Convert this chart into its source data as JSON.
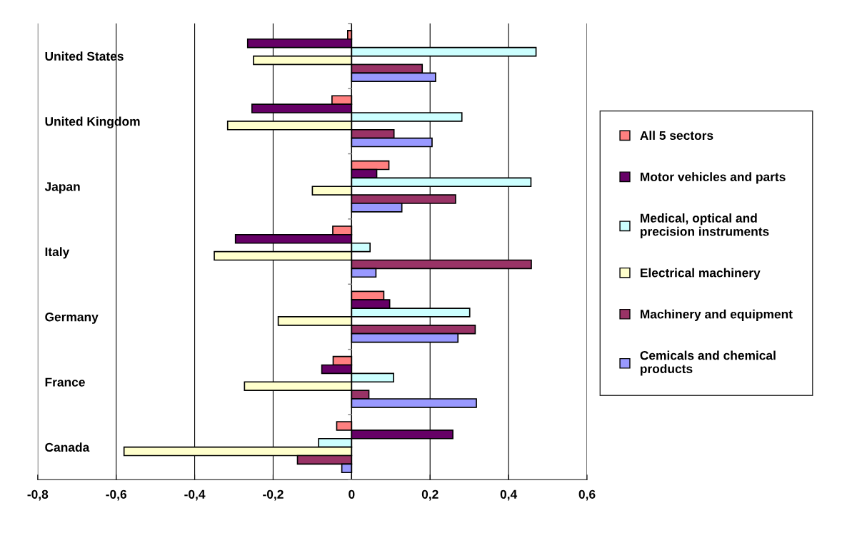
{
  "chart_data": {
    "type": "bar",
    "orientation": "horizontal",
    "categories": [
      "United States",
      "United Kingdom",
      "Japan",
      "Italy",
      "Germany",
      "France",
      "Canada"
    ],
    "series": [
      {
        "name": "All 5 sectors",
        "color": "#ff8080",
        "values": [
          -0.01,
          -0.05,
          0.095,
          -0.048,
          0.082,
          -0.047,
          -0.038
        ]
      },
      {
        "name": "Motor vehicles and parts",
        "color": "#660066",
        "values": [
          -0.265,
          -0.254,
          0.064,
          -0.296,
          0.097,
          -0.076,
          0.258
        ]
      },
      {
        "name": "Medical, optical and\nprecision instruments",
        "color": "#ccffff",
        "values": [
          0.47,
          0.281,
          0.457,
          0.047,
          0.301,
          0.107,
          -0.084
        ]
      },
      {
        "name": "Electrical machinery",
        "color": "#ffffcc",
        "values": [
          -0.25,
          -0.316,
          -0.1,
          -0.35,
          -0.187,
          -0.273,
          -0.58
        ]
      },
      {
        "name": "Machinery and equipment",
        "color": "#993366",
        "values": [
          0.18,
          0.108,
          0.265,
          0.458,
          0.315,
          0.044,
          -0.138
        ]
      },
      {
        "name": "Cemicals and chemical\nproducts",
        "color": "#9999ff",
        "values": [
          0.214,
          0.205,
          0.128,
          0.062,
          0.271,
          0.318,
          -0.025
        ]
      }
    ],
    "xlim": [
      -0.8,
      0.6
    ],
    "xticks": [
      {
        "value": -0.8,
        "label": "-0,8"
      },
      {
        "value": -0.6,
        "label": "-0,6"
      },
      {
        "value": -0.4,
        "label": "-0,4"
      },
      {
        "value": -0.2,
        "label": "-0,2"
      },
      0,
      {
        "value": 0.2,
        "label": "0,2"
      },
      {
        "value": 0.4,
        "label": "0,4"
      },
      {
        "value": 0.6,
        "label": "0,6"
      }
    ],
    "grid": "x",
    "legend": "right"
  }
}
